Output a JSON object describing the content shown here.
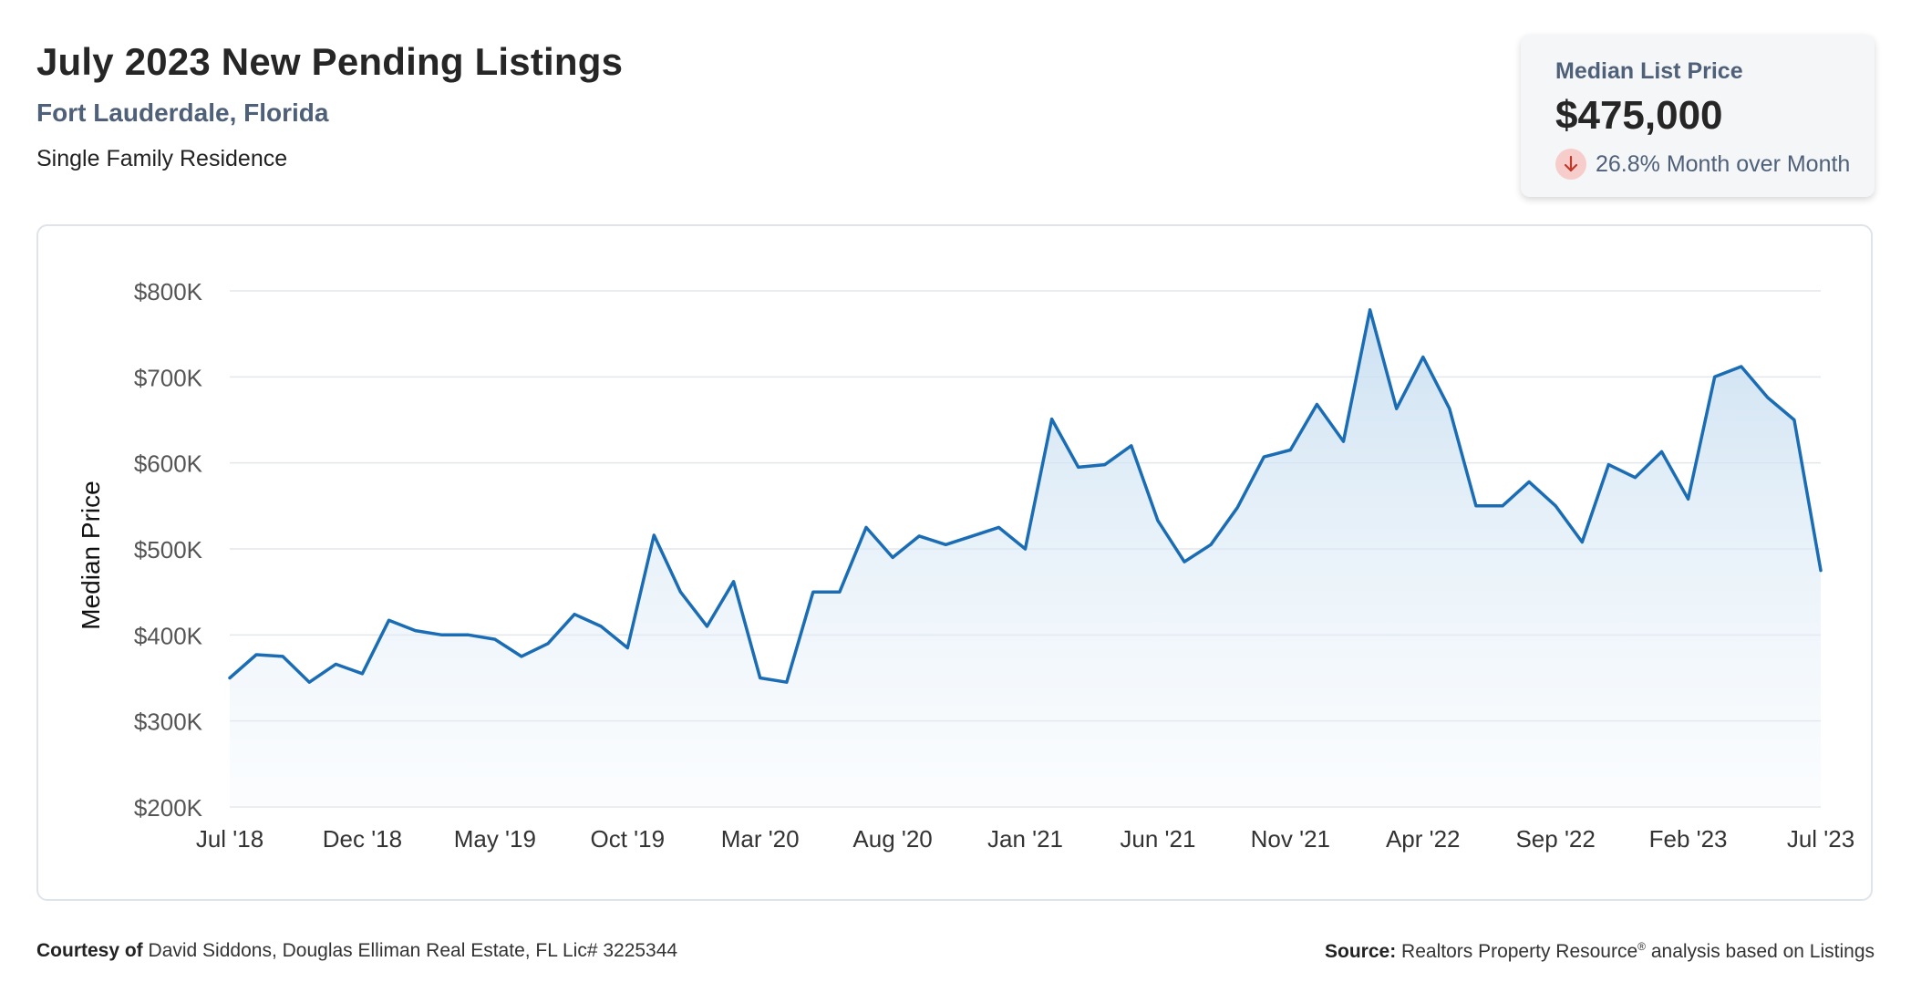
{
  "header": {
    "title": "July 2023 New Pending Listings",
    "location": "Fort Lauderdale, Florida",
    "property_type": "Single Family Residence"
  },
  "kpi": {
    "label": "Median List Price",
    "value": "$475,000",
    "change": "26.8% Month over Month",
    "direction_icon": "arrow-down-icon"
  },
  "footer": {
    "courtesy_label": "Courtesy of",
    "courtesy_text": "David Siddons, Douglas Elliman Real Estate, FL Lic# 3225344",
    "source_label": "Source:",
    "source_text_1": "Realtors Property Resource",
    "source_mark": "®",
    "source_text_2": "analysis based on Listings"
  },
  "colors": {
    "line": "#1a6db5",
    "area_top": "#c6ddf0",
    "grid": "#e3e6eb",
    "down": "#c0392b"
  },
  "chart_data": {
    "type": "area",
    "ylabel": "Median Price",
    "xlabel": "",
    "ylim": [
      200000,
      800000
    ],
    "y_ticks": [
      200000,
      300000,
      400000,
      500000,
      600000,
      700000,
      800000
    ],
    "y_tick_labels": [
      "$200K",
      "$300K",
      "$400K",
      "$500K",
      "$600K",
      "$700K",
      "$800K"
    ],
    "x_tick_labels": [
      "Jul '18",
      "Dec '18",
      "May '19",
      "Oct '19",
      "Mar '20",
      "Aug '20",
      "Jan '21",
      "Jun '21",
      "Nov '21",
      "Apr '22",
      "Sep '22",
      "Feb '23",
      "Jul '23"
    ],
    "x_tick_index": [
      0,
      5,
      10,
      15,
      20,
      25,
      30,
      35,
      40,
      45,
      50,
      55,
      60
    ],
    "grid": true,
    "x": [
      "2018-07",
      "2018-08",
      "2018-09",
      "2018-10",
      "2018-11",
      "2018-12",
      "2019-01",
      "2019-02",
      "2019-03",
      "2019-04",
      "2019-05",
      "2019-06",
      "2019-07",
      "2019-08",
      "2019-09",
      "2019-10",
      "2019-11",
      "2019-12",
      "2020-01",
      "2020-02",
      "2020-03",
      "2020-04",
      "2020-05",
      "2020-06",
      "2020-07",
      "2020-08",
      "2020-09",
      "2020-10",
      "2020-11",
      "2020-12",
      "2021-01",
      "2021-02",
      "2021-03",
      "2021-04",
      "2021-05",
      "2021-06",
      "2021-07",
      "2021-08",
      "2021-09",
      "2021-10",
      "2021-11",
      "2021-12",
      "2022-01",
      "2022-02",
      "2022-03",
      "2022-04",
      "2022-05",
      "2022-06",
      "2022-07",
      "2022-08",
      "2022-09",
      "2022-10",
      "2022-11",
      "2022-12",
      "2023-01",
      "2023-02",
      "2023-03",
      "2023-04",
      "2023-05",
      "2023-06",
      "2023-07"
    ],
    "values": [
      350000,
      377000,
      375000,
      345000,
      366000,
      355000,
      417000,
      405000,
      400000,
      400000,
      395000,
      375000,
      390000,
      424000,
      410000,
      385000,
      516000,
      450000,
      410000,
      462000,
      350000,
      345000,
      450000,
      450000,
      525000,
      490000,
      515000,
      505000,
      515000,
      525000,
      500000,
      651000,
      595000,
      598000,
      620000,
      533000,
      485000,
      505000,
      548000,
      607000,
      615000,
      668000,
      625000,
      778000,
      663000,
      723000,
      663000,
      550000,
      550000,
      578000,
      550000,
      508000,
      598000,
      583000,
      613000,
      558000,
      700000,
      712000,
      676000,
      650000,
      475000
    ]
  }
}
